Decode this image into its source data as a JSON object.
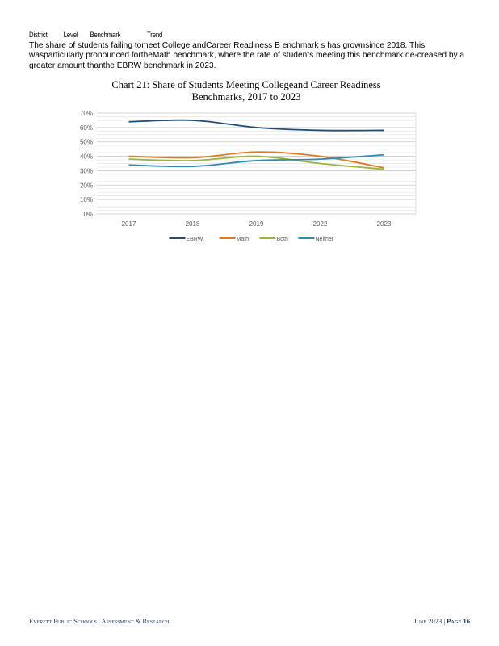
{
  "header_row": {
    "col1": "District",
    "col2": "Level",
    "col3": "Benchmark",
    "col4": "Trend"
  },
  "paragraph": "The share of students failing tomeet College andCareer Readiness B enchmark s has grownsince 2018. This wasparticularly pronounced fortheMath benchmark, where the rate of students meeting this benchmark de-creased by a greater amount thanthe EBRW benchmark in 2023.",
  "chart_data": {
    "type": "line",
    "title_line1": "Chart 21: Share of Students Meeting Collegeand Career Readiness",
    "title_line2": "Benchmarks, 2017 to 2023",
    "categories": [
      "2017",
      "2018",
      "2019",
      "2022",
      "2023"
    ],
    "y_ticks": [
      "0%",
      "10%",
      "20%",
      "30%",
      "40%",
      "50%",
      "60%",
      "70%"
    ],
    "ylim": [
      0,
      70
    ],
    "grid": true,
    "legend_position": "bottom",
    "series": [
      {
        "name": "EBRW",
        "values": [
          64,
          65,
          60,
          58,
          58
        ],
        "color": "#1f4e79"
      },
      {
        "name": "Math",
        "values": [
          40,
          39,
          43,
          40,
          32
        ],
        "color": "#e07b24"
      },
      {
        "name": "Both",
        "values": [
          38,
          37,
          40,
          35,
          31
        ],
        "color": "#9ab53d"
      },
      {
        "name": "Neither",
        "values": [
          34,
          33,
          37,
          38,
          41
        ],
        "color": "#2e8bb5"
      }
    ]
  },
  "footer": {
    "left": "Everett Public Schools | Assessment & Research",
    "right_date": "June 2023 | ",
    "right_page": "Page 16"
  }
}
